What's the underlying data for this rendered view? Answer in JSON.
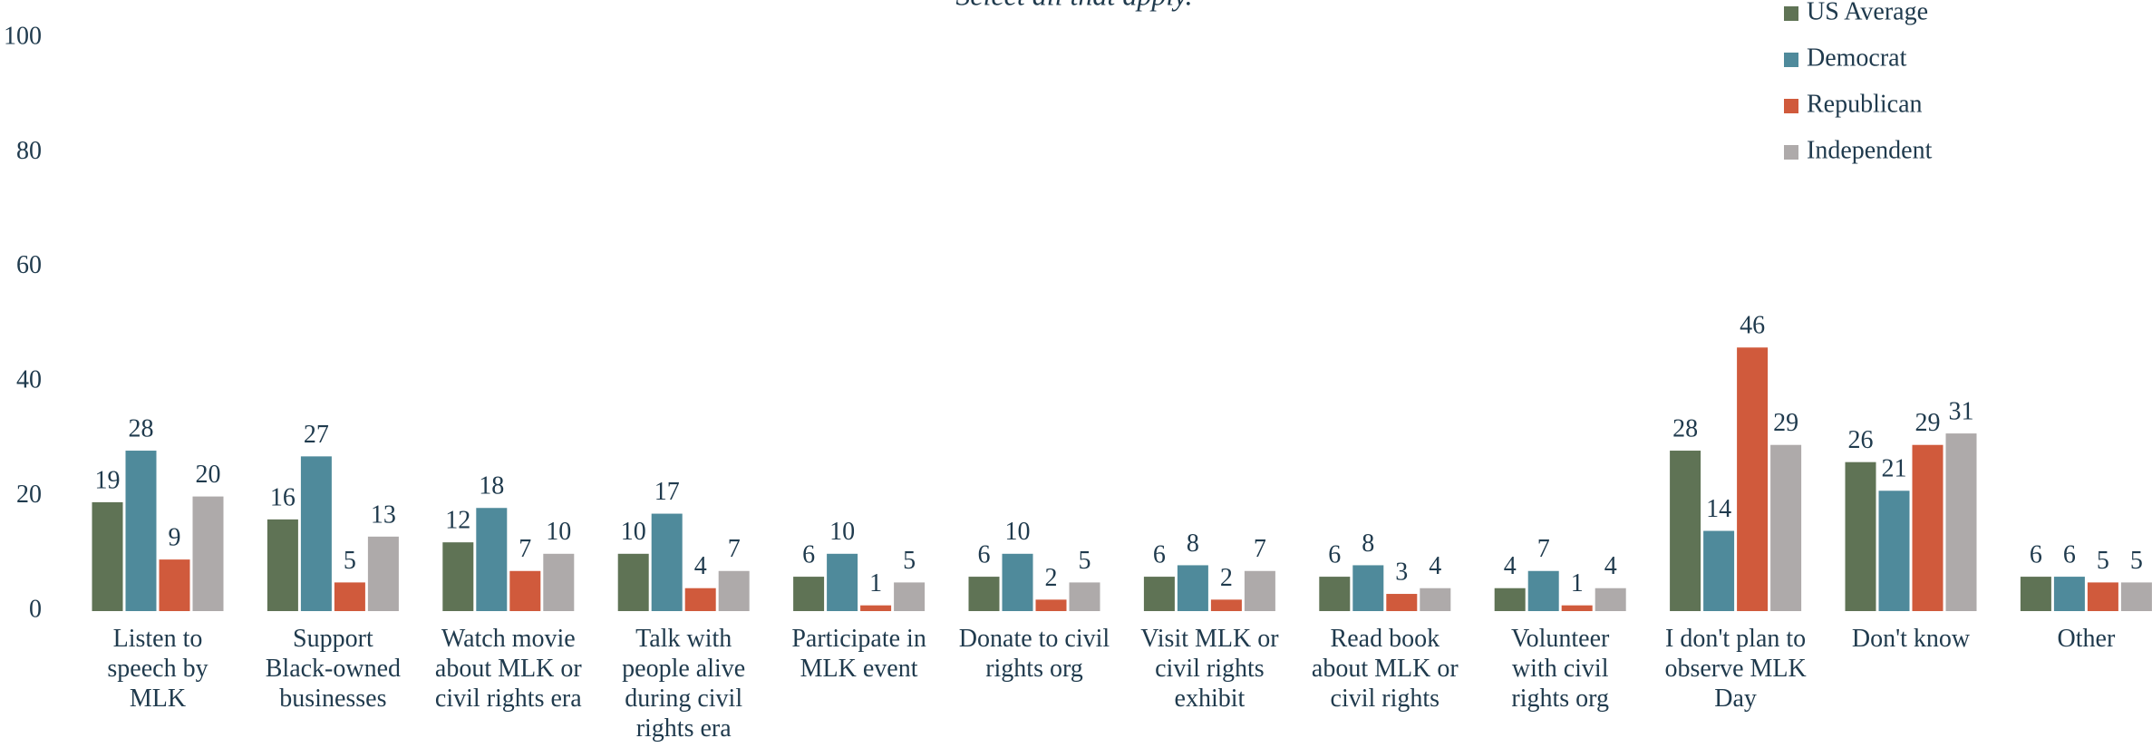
{
  "chart_data": {
    "type": "bar",
    "subtitle": "Select all that apply.",
    "categories": [
      "Listen to\nspeech by\nMLK",
      "Support\nBlack-owned\nbusinesses",
      "Watch movie\nabout MLK or\ncivil rights era",
      "Talk with\npeople alive\nduring civil\nrights era",
      "Participate in\nMLK event",
      "Donate to civil\nrights org",
      "Visit MLK or\ncivil rights\nexhibit",
      "Read book\nabout MLK or\ncivil rights",
      "Volunteer\nwith civil\nrights org",
      "I don't plan to\nobserve MLK\nDay",
      "Don't know",
      "Other"
    ],
    "series": [
      {
        "name": "US Average",
        "color": "#5f7355",
        "values": [
          19,
          16,
          12,
          10,
          6,
          6,
          6,
          6,
          4,
          28,
          26,
          6
        ]
      },
      {
        "name": "Democrat",
        "color": "#4f8a9b",
        "values": [
          28,
          27,
          18,
          17,
          10,
          10,
          8,
          8,
          7,
          14,
          21,
          6
        ]
      },
      {
        "name": "Republican",
        "color": "#d05a3c",
        "values": [
          9,
          5,
          7,
          4,
          1,
          2,
          2,
          3,
          1,
          46,
          29,
          5
        ]
      },
      {
        "name": "Independent",
        "color": "#aeaaaa",
        "values": [
          20,
          13,
          10,
          7,
          5,
          5,
          7,
          4,
          4,
          29,
          31,
          5
        ]
      }
    ],
    "ylim": [
      0,
      100
    ],
    "yticks": [
      0,
      20,
      40,
      60,
      80,
      100
    ],
    "grid": false,
    "legend": "upper right"
  }
}
